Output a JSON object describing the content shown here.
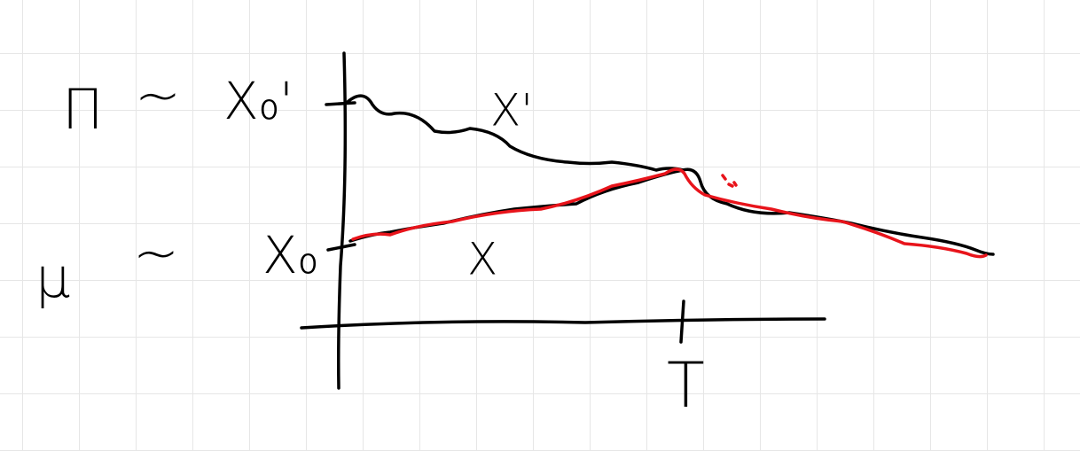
{
  "labels": {
    "upper_measure": "Π",
    "upper_tilde": "~",
    "upper_start": "X₀'",
    "lower_measure": "μ",
    "lower_tilde": "~",
    "lower_start": "X₀",
    "upper_path": "X'",
    "lower_path": "X",
    "time": "T"
  }
}
